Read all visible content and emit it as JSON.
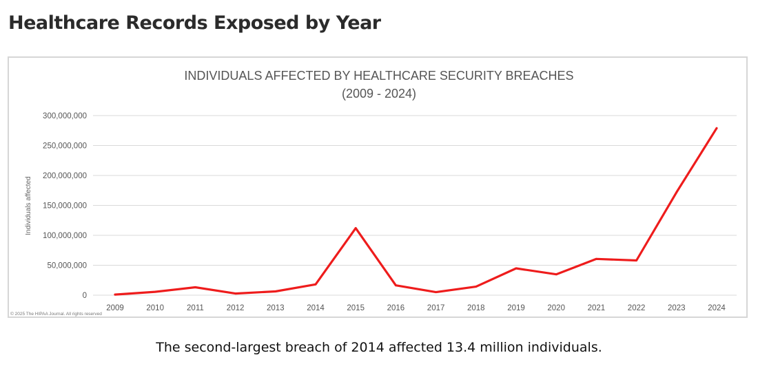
{
  "page": {
    "title": "Healthcare Records Exposed by Year",
    "caption": "The second-largest breach of 2014 affected 13.4 million individuals."
  },
  "chart_data": {
    "type": "line",
    "title": "INDIVIDUALS AFFECTED BY HEALTHCARE SECURITY BREACHES",
    "subtitle": "(2009 - 2024)",
    "xlabel": "",
    "ylabel": "Individuals affected",
    "categories": [
      "2009",
      "2010",
      "2011",
      "2012",
      "2013",
      "2014",
      "2015",
      "2016",
      "2017",
      "2018",
      "2019",
      "2020",
      "2021",
      "2022",
      "2023",
      "2024"
    ],
    "series": [
      {
        "name": "Individuals affected",
        "color": "#ee1c1c",
        "values": [
          1000000,
          5600000,
          13200000,
          2800000,
          6300000,
          18000000,
          112000000,
          16400000,
          5100000,
          14200000,
          44800000,
          34800000,
          60600000,
          58000000,
          172000000,
          279000000
        ]
      }
    ],
    "ylim": [
      0,
      300000000
    ],
    "yticks": [
      0,
      50000000,
      100000000,
      150000000,
      200000000,
      250000000,
      300000000
    ],
    "ytick_labels": [
      "0",
      "50,000,000",
      "100,000,000",
      "150,000,000",
      "200,000,000",
      "250,000,000",
      "300,000,000"
    ],
    "grid": true,
    "legend": "none",
    "copyright": "© 2025 The HIPAA Journal. All rights reserved"
  }
}
